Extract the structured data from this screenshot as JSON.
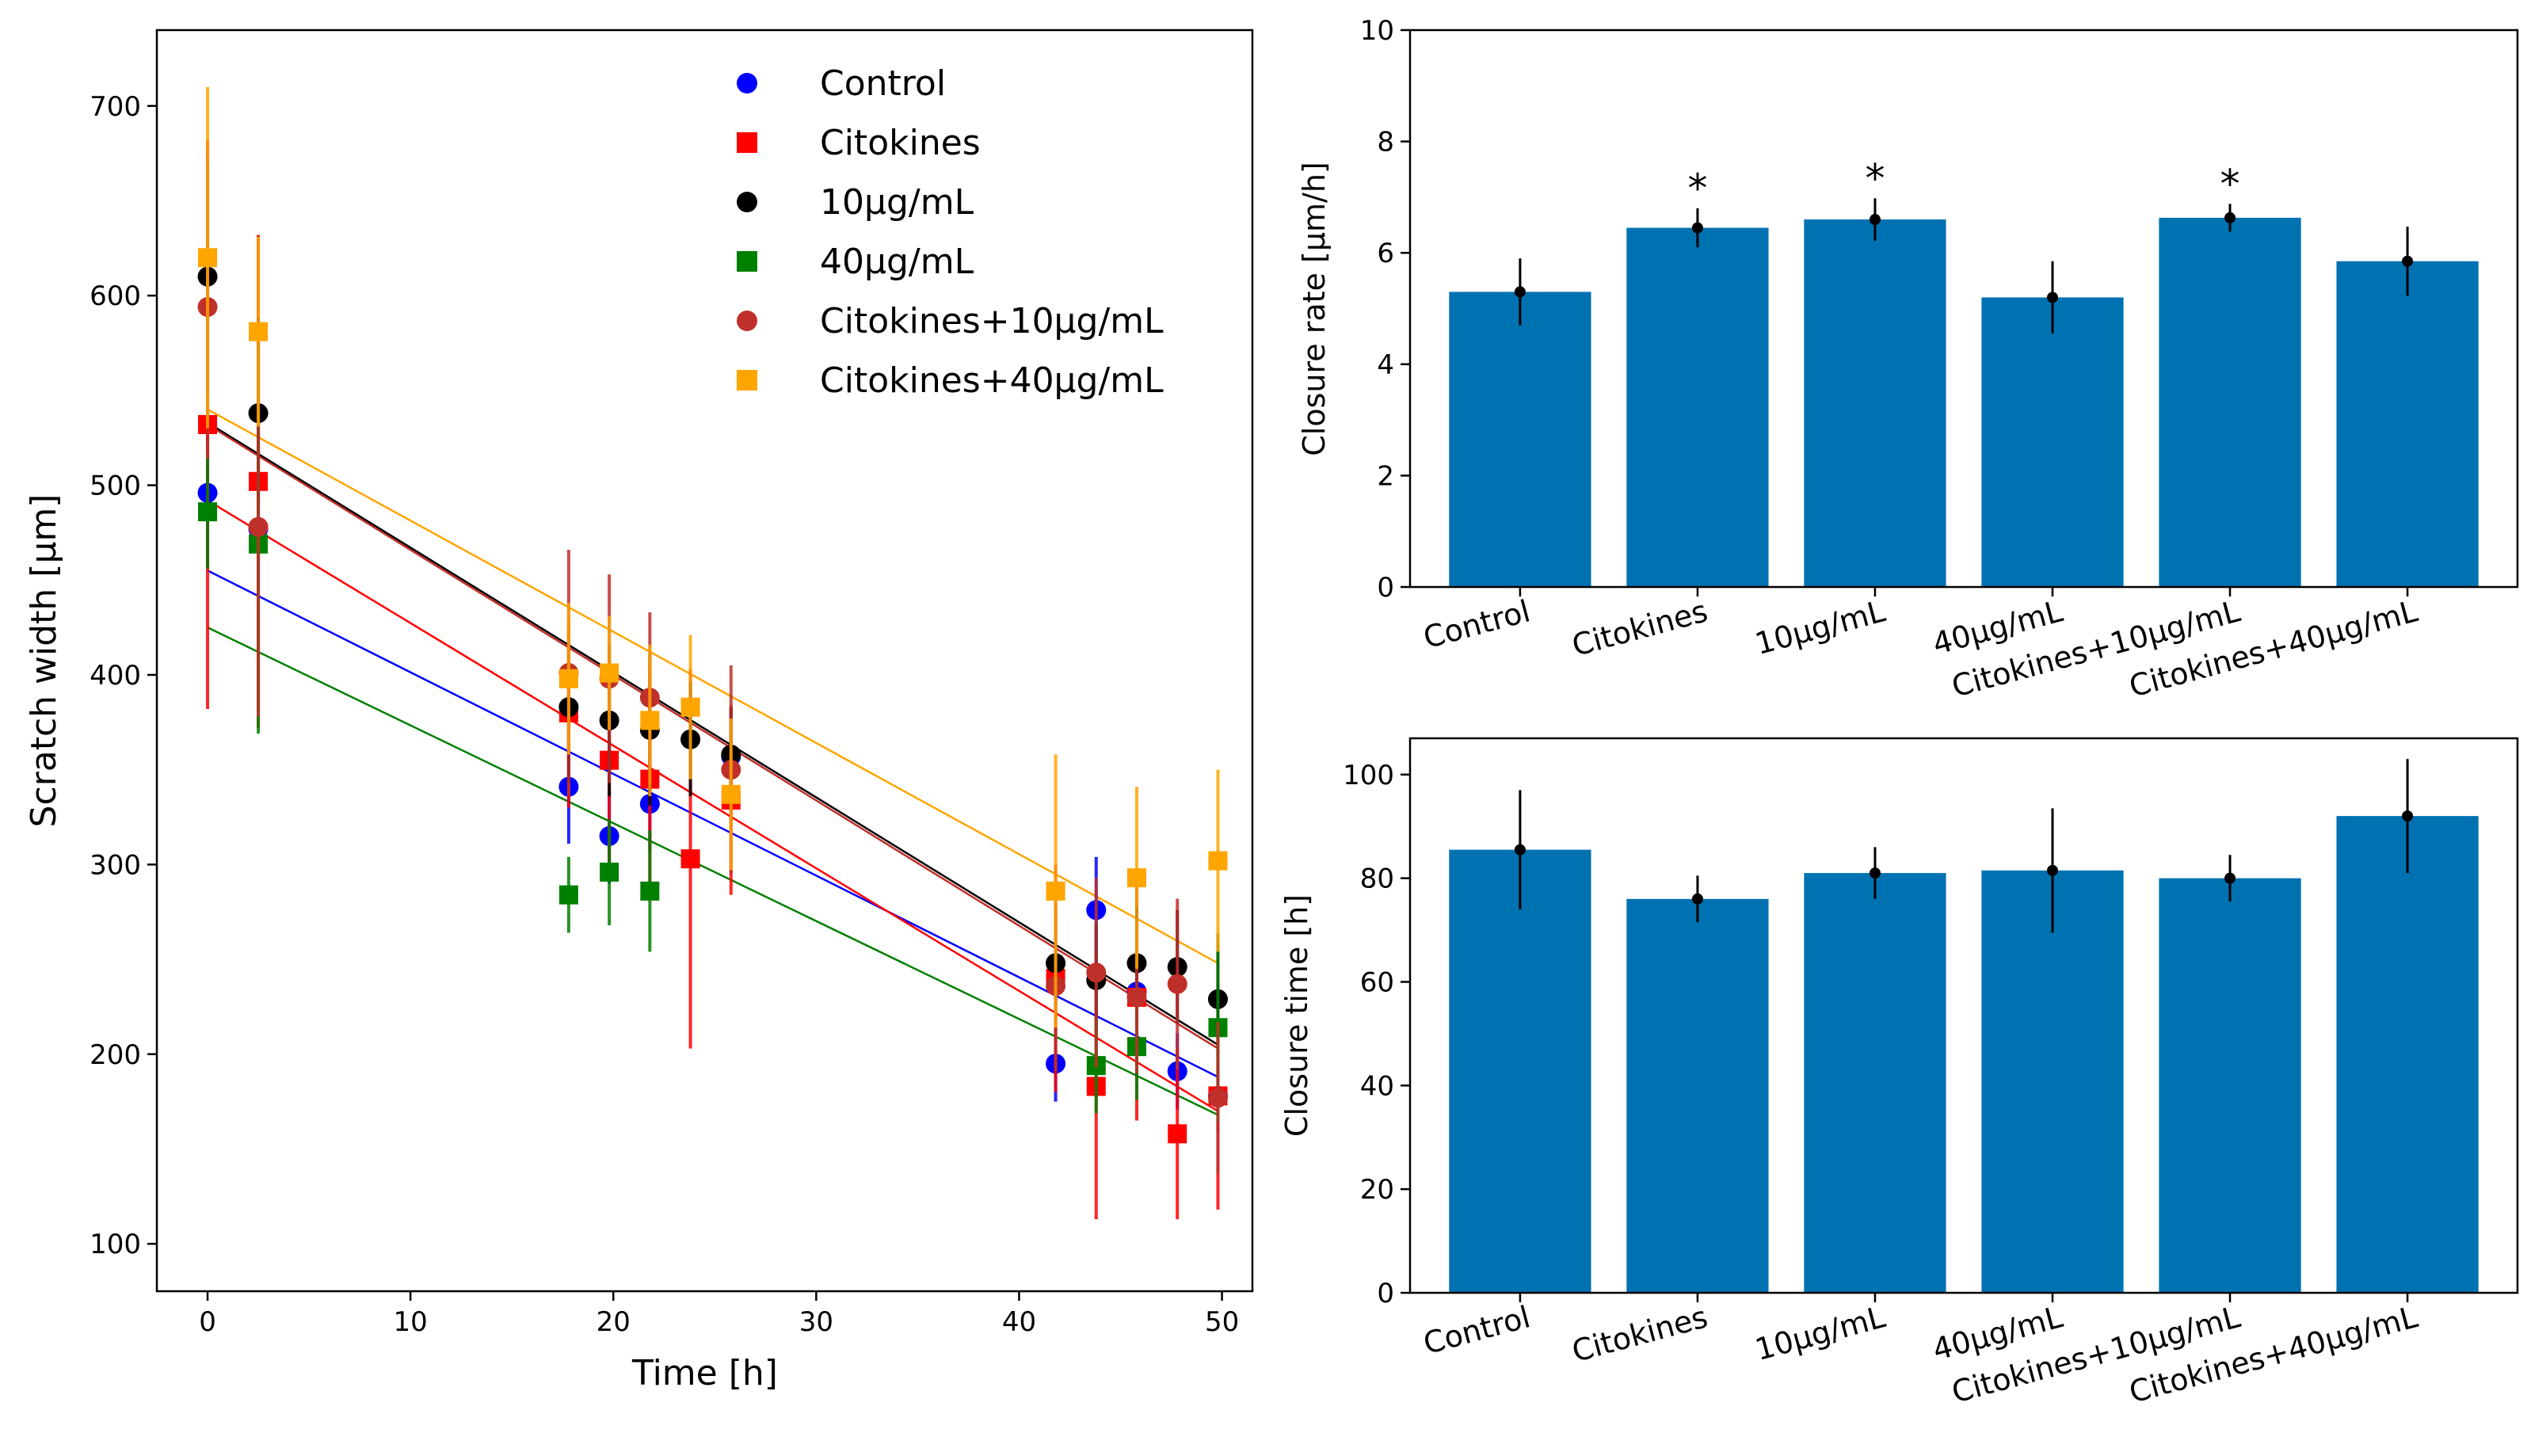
{
  "chart_data": [
    {
      "type": "scatter",
      "xlabel": "Time [h]",
      "ylabel": "Scratch width [μm]",
      "xlim": [
        -2.5,
        51.5
      ],
      "ylim": [
        75,
        740
      ],
      "xticks": [
        0,
        10,
        20,
        30,
        40,
        50
      ],
      "yticks": [
        100,
        200,
        300,
        400,
        500,
        600,
        700
      ],
      "legend_position": "top-right",
      "series": [
        {
          "name": "Control",
          "color": "#0000ff",
          "marker": "circle",
          "points": [
            {
              "x": 0,
              "y": 496,
              "err": 40
            },
            {
              "x": 2.5,
              "y": 477,
              "err": 45
            },
            {
              "x": 17.8,
              "y": 341,
              "err": 30
            },
            {
              "x": 19.8,
              "y": 315,
              "err": 25
            },
            {
              "x": 21.8,
              "y": 332,
              "err": 25
            },
            {
              "x": 25.8,
              "y": 357,
              "err": 25
            },
            {
              "x": 41.8,
              "y": 195,
              "err": 20
            },
            {
              "x": 43.8,
              "y": 276,
              "err": 28
            },
            {
              "x": 45.8,
              "y": 233,
              "err": 25
            },
            {
              "x": 47.8,
              "y": 191,
              "err": 20
            },
            {
              "x": 49.8,
              "y": 178,
              "err": 20
            }
          ],
          "fit": [
            [
              0,
              455
            ],
            [
              49.8,
              188
            ]
          ]
        },
        {
          "name": "Citokines",
          "color": "#ff0000",
          "marker": "square",
          "points": [
            {
              "x": 0,
              "y": 532,
              "err": 150
            },
            {
              "x": 2.5,
              "y": 502,
              "err": 130
            },
            {
              "x": 17.8,
              "y": 380,
              "err": 50
            },
            {
              "x": 19.8,
              "y": 355,
              "err": 60
            },
            {
              "x": 21.8,
              "y": 345,
              "err": 60
            },
            {
              "x": 23.8,
              "y": 303,
              "err": 100
            },
            {
              "x": 25.8,
              "y": 334,
              "err": 50
            },
            {
              "x": 41.8,
              "y": 240,
              "err": 60
            },
            {
              "x": 43.8,
              "y": 183,
              "err": 70
            },
            {
              "x": 45.8,
              "y": 230,
              "err": 65
            },
            {
              "x": 47.8,
              "y": 158,
              "err": 45
            },
            {
              "x": 49.8,
              "y": 178,
              "err": 60
            }
          ],
          "fit": [
            [
              0,
              492
            ],
            [
              49.8,
              170
            ]
          ]
        },
        {
          "name": "10μg/mL",
          "color": "#000000",
          "marker": "circle",
          "points": [
            {
              "x": 0,
              "y": 610,
              "err": 60
            },
            {
              "x": 2.5,
              "y": 538,
              "err": 50
            },
            {
              "x": 17.8,
              "y": 383,
              "err": 40
            },
            {
              "x": 19.8,
              "y": 376,
              "err": 40
            },
            {
              "x": 21.8,
              "y": 371,
              "err": 40
            },
            {
              "x": 23.8,
              "y": 366,
              "err": 30
            },
            {
              "x": 25.8,
              "y": 358,
              "err": 25
            },
            {
              "x": 41.8,
              "y": 248,
              "err": 30
            },
            {
              "x": 43.8,
              "y": 239,
              "err": 30
            },
            {
              "x": 45.8,
              "y": 248,
              "err": 30
            },
            {
              "x": 47.8,
              "y": 246,
              "err": 30
            },
            {
              "x": 49.8,
              "y": 229,
              "err": 30
            }
          ],
          "fit": [
            [
              0,
              533
            ],
            [
              49.8,
              205
            ]
          ]
        },
        {
          "name": "40μg/mL",
          "color": "#008000",
          "marker": "square",
          "points": [
            {
              "x": 0,
              "y": 486,
              "err": 30
            },
            {
              "x": 2.5,
              "y": 469,
              "err": 100
            },
            {
              "x": 17.8,
              "y": 284,
              "err": 20
            },
            {
              "x": 19.8,
              "y": 296,
              "err": 28
            },
            {
              "x": 21.8,
              "y": 286,
              "err": 32
            },
            {
              "x": 43.8,
              "y": 194,
              "err": 25
            },
            {
              "x": 45.8,
              "y": 204,
              "err": 28
            },
            {
              "x": 49.8,
              "y": 214,
              "err": 50
            }
          ],
          "fit": [
            [
              0,
              425
            ],
            [
              49.8,
              168
            ]
          ]
        },
        {
          "name": "Citokines+10μg/mL",
          "color": "#c0302a",
          "marker": "circle",
          "points": [
            {
              "x": 0,
              "y": 594,
              "err": 80
            },
            {
              "x": 2.5,
              "y": 478,
              "err": 100
            },
            {
              "x": 17.8,
              "y": 401,
              "err": 65
            },
            {
              "x": 19.8,
              "y": 398,
              "err": 55
            },
            {
              "x": 21.8,
              "y": 388,
              "err": 45
            },
            {
              "x": 25.8,
              "y": 350,
              "err": 55
            },
            {
              "x": 41.8,
              "y": 236,
              "err": 45
            },
            {
              "x": 43.8,
              "y": 243,
              "err": 50
            },
            {
              "x": 45.8,
              "y": 230,
              "err": 40
            },
            {
              "x": 47.8,
              "y": 237,
              "err": 45
            },
            {
              "x": 49.8,
              "y": 177,
              "err": 40
            }
          ],
          "fit": [
            [
              0,
              532
            ],
            [
              49.8,
              203
            ]
          ]
        },
        {
          "name": "Citokines+40μg/mL",
          "color": "#ffa500",
          "marker": "square",
          "points": [
            {
              "x": 0,
              "y": 620,
              "err": 90
            },
            {
              "x": 2.5,
              "y": 581,
              "err": 50
            },
            {
              "x": 17.8,
              "y": 398,
              "err": 40
            },
            {
              "x": 19.8,
              "y": 401,
              "err": 30
            },
            {
              "x": 21.8,
              "y": 376,
              "err": 40
            },
            {
              "x": 23.8,
              "y": 383,
              "err": 38
            },
            {
              "x": 25.8,
              "y": 337,
              "err": 40
            },
            {
              "x": 41.8,
              "y": 286,
              "err": 72
            },
            {
              "x": 45.8,
              "y": 293,
              "err": 48
            },
            {
              "x": 49.8,
              "y": 302,
              "err": 48
            }
          ],
          "fit": [
            [
              0,
              540
            ],
            [
              49.8,
              248
            ]
          ]
        }
      ]
    },
    {
      "type": "bar",
      "ylabel": "Closure rate [μm/h]",
      "ylim": [
        0,
        10
      ],
      "yticks": [
        0,
        2,
        4,
        6,
        8,
        10
      ],
      "color": "#0072b2",
      "categories": [
        "Control",
        "Citokines",
        "10μg/mL",
        "40μg/mL",
        "Citokines+10μg/mL",
        "Citokines+40μg/mL"
      ],
      "values": [
        5.3,
        6.45,
        6.6,
        5.2,
        6.63,
        5.85
      ],
      "errors": [
        0.6,
        0.35,
        0.38,
        0.65,
        0.25,
        0.62
      ],
      "significance": [
        "",
        "*",
        "*",
        "",
        "*",
        ""
      ]
    },
    {
      "type": "bar",
      "ylabel": "Closure time [h]",
      "ylim": [
        0,
        107
      ],
      "yticks": [
        0,
        20,
        40,
        60,
        80,
        100
      ],
      "color": "#0072b2",
      "categories": [
        "Control",
        "Citokines",
        "10μg/mL",
        "40μg/mL",
        "Citokines+10μg/mL",
        "Citokines+40μg/mL"
      ],
      "values": [
        85.5,
        76,
        81,
        81.5,
        80,
        92
      ],
      "errors": [
        11.5,
        4.5,
        5,
        12,
        4.5,
        11
      ],
      "significance": [
        "",
        "",
        "",
        "",
        "",
        ""
      ]
    }
  ]
}
